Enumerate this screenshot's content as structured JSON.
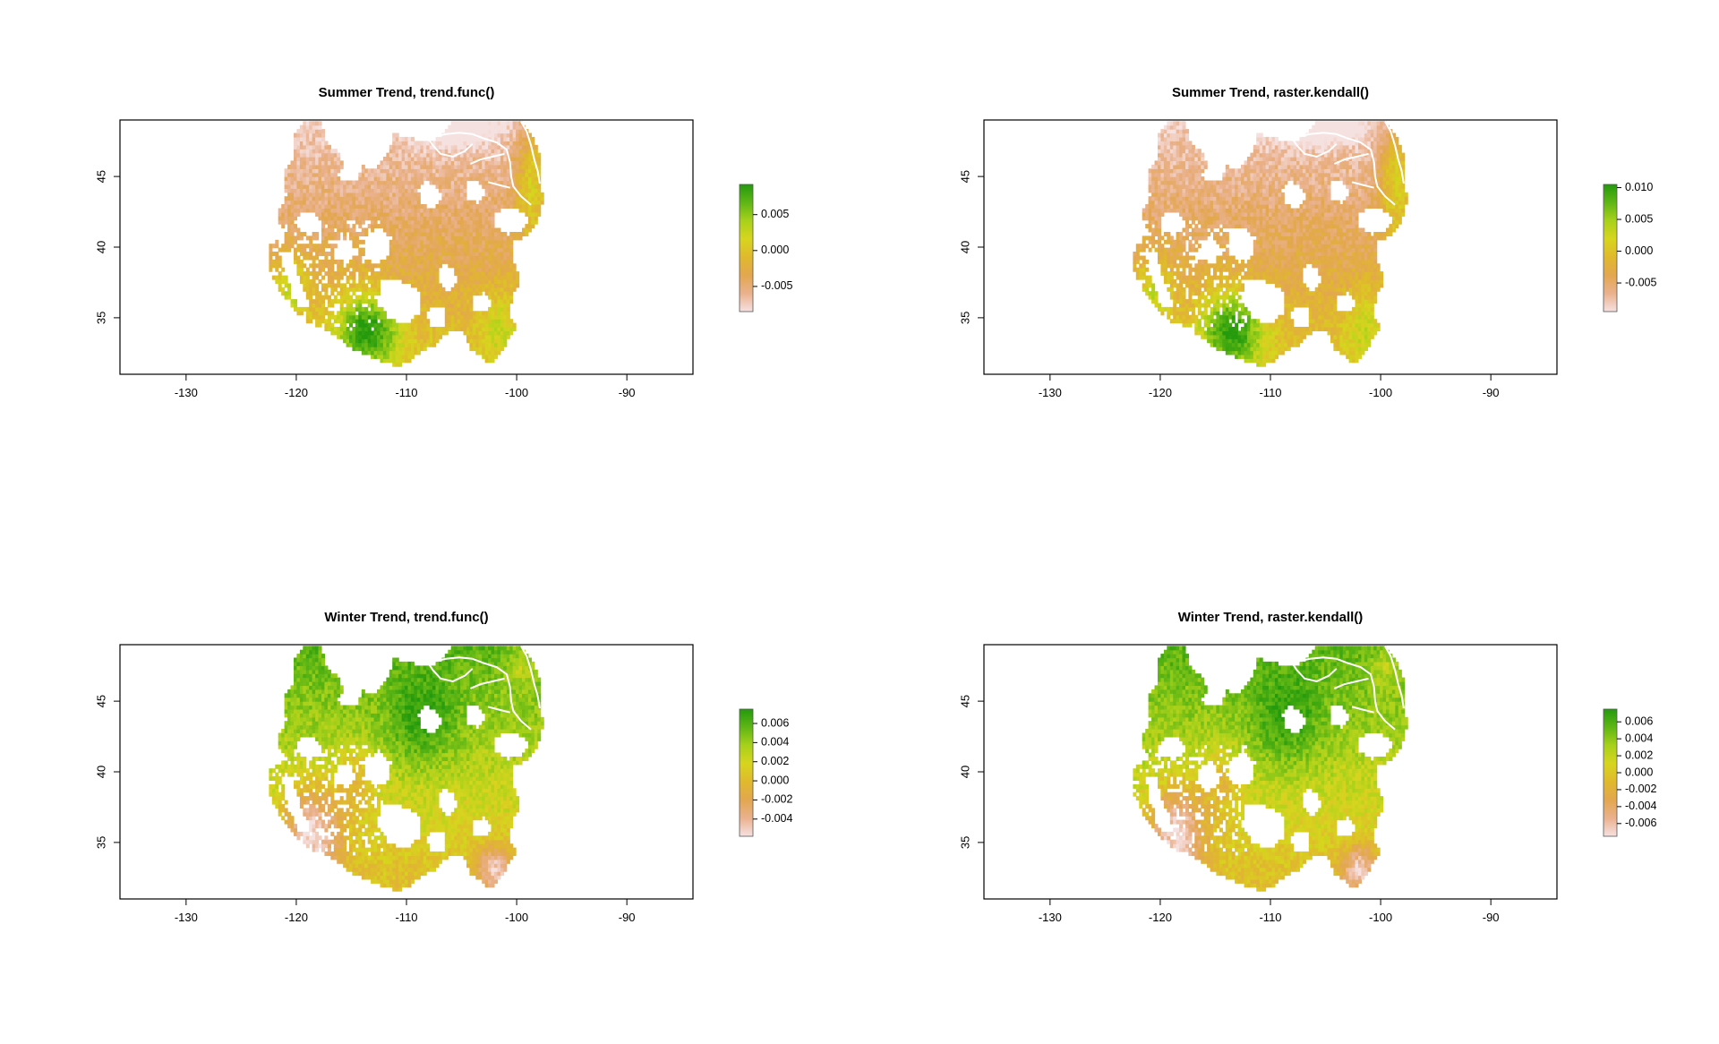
{
  "colors": {
    "background": "#ffffff",
    "axis": "#000000",
    "rivers": "#ffffff",
    "palette": [
      "#f6e1e1",
      "#eab18d",
      "#e3a74f",
      "#e0b92c",
      "#d7d51e",
      "#a8d11a",
      "#5fb614",
      "#249a0d"
    ]
  },
  "chart_data": [
    {
      "type": "heatmap",
      "title": "Summer Trend, trend.func()",
      "xlabel": "",
      "ylabel": "",
      "xlim": [
        -136,
        -84
      ],
      "ylim": [
        31,
        49
      ],
      "x_ticks": [
        "-130",
        "-120",
        "-110",
        "-100",
        "-90"
      ],
      "y_ticks": [
        "35",
        "40",
        "45"
      ],
      "legend": {
        "placement": "right",
        "range": [
          -0.0085,
          0.0092
        ],
        "labels": [
          "0.005",
          "0.000",
          "-0.005"
        ],
        "values": [
          0.005,
          0.0,
          -0.005
        ]
      },
      "spatial_pattern": "negative (orange/pink) across north and center; positive (green) in southwest Arizona and along the eastern plains",
      "region": "western United States"
    },
    {
      "type": "heatmap",
      "title": "Summer Trend, raster.kendall()",
      "xlabel": "",
      "ylabel": "",
      "xlim": [
        -136,
        -84
      ],
      "ylim": [
        31,
        49
      ],
      "x_ticks": [
        "-130",
        "-120",
        "-110",
        "-100",
        "-90"
      ],
      "y_ticks": [
        "35",
        "40",
        "45"
      ],
      "legend": {
        "placement": "right",
        "range": [
          -0.0095,
          0.0105
        ],
        "labels": [
          "0.010",
          "0.005",
          "0.000",
          "-0.005"
        ],
        "values": [
          0.01,
          0.005,
          0.0,
          -0.005
        ]
      },
      "spatial_pattern": "negative (orange/pink) across north and center; positive (green) in southwest Arizona and along the eastern plains",
      "region": "western United States"
    },
    {
      "type": "heatmap",
      "title": "Winter Trend, trend.func()",
      "xlabel": "",
      "ylabel": "",
      "xlim": [
        -136,
        -84
      ],
      "ylim": [
        31,
        49
      ],
      "x_ticks": [
        "-130",
        "-120",
        "-110",
        "-100",
        "-90"
      ],
      "y_ticks": [
        "35",
        "40",
        "45"
      ],
      "legend": {
        "placement": "right",
        "range": [
          -0.0058,
          0.0075
        ],
        "labels": [
          "0.006",
          "0.004",
          "0.002",
          "0.000",
          "-0.002",
          "-0.004"
        ],
        "values": [
          0.006,
          0.004,
          0.002,
          0.0,
          -0.002,
          -0.004
        ]
      },
      "spatial_pattern": "positive (green) across the north and Rockies; negative (orange) in California, Nevada and the southern plains",
      "region": "western United States"
    },
    {
      "type": "heatmap",
      "title": "Winter Trend, raster.kendall()",
      "xlabel": "",
      "ylabel": "",
      "xlim": [
        -136,
        -84
      ],
      "ylim": [
        31,
        49
      ],
      "x_ticks": [
        "-130",
        "-120",
        "-110",
        "-100",
        "-90"
      ],
      "y_ticks": [
        "35",
        "40",
        "45"
      ],
      "legend": {
        "placement": "right",
        "range": [
          -0.0075,
          0.0075
        ],
        "labels": [
          "0.006",
          "0.004",
          "0.002",
          "0.000",
          "-0.002",
          "-0.004",
          "-0.006"
        ],
        "values": [
          0.006,
          0.004,
          0.002,
          0.0,
          -0.002,
          -0.004,
          -0.006
        ]
      },
      "spatial_pattern": "positive (green) across the north and Rockies; negative (orange) in California, Nevada and the southern plains",
      "region": "western United States"
    }
  ]
}
